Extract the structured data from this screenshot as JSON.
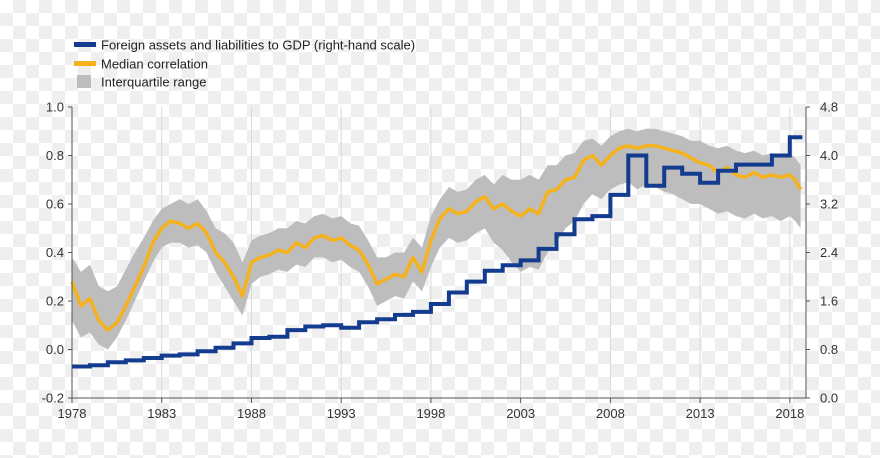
{
  "colors": {
    "assets_line": "#133b8f",
    "median_line": "#f5b21c",
    "iqr_band": "#bdbdbd",
    "grid": "#d9d9d9",
    "axis": "#555555"
  },
  "chart_data": {
    "type": "line",
    "title": "",
    "legend_position": "top-left",
    "grid": true,
    "x": {
      "min": 1978,
      "max": 2018.9,
      "ticks": [
        1978,
        1983,
        1988,
        1993,
        1998,
        2003,
        2008,
        2013,
        2018
      ]
    },
    "y_left": {
      "min": -0.2,
      "max": 1.0,
      "ticks": [
        "1.0",
        "0.8",
        "0.6",
        "0.4",
        "0.2",
        "0.0",
        "-0.2"
      ],
      "tick_values": [
        1.0,
        0.8,
        0.6,
        0.4,
        0.2,
        0.0,
        -0.2
      ]
    },
    "y_right": {
      "min": 0.0,
      "max": 4.8,
      "ticks": [
        "4.8",
        "4.0",
        "3.2",
        "2.4",
        "1.6",
        "0.8",
        "0.0"
      ],
      "tick_values": [
        4.8,
        4.0,
        3.2,
        2.4,
        1.6,
        0.8,
        0.0
      ]
    },
    "series": [
      {
        "name": "Foreign assets and liabilities to GDP (right-hand scale)",
        "axis": "right",
        "type": "step",
        "x": [
          1978,
          1979,
          1980,
          1981,
          1982,
          1983,
          1984,
          1985,
          1986,
          1987,
          1988,
          1989,
          1990,
          1991,
          1992,
          1993,
          1994,
          1995,
          1996,
          1997,
          1998,
          1999,
          2000,
          2001,
          2002,
          2003,
          2004,
          2005,
          2006,
          2007,
          2008,
          2009,
          2010,
          2011,
          2012,
          2013,
          2014,
          2015,
          2016,
          2017,
          2018,
          2018.7
        ],
        "y": [
          0.52,
          0.54,
          0.59,
          0.62,
          0.66,
          0.7,
          0.72,
          0.77,
          0.83,
          0.9,
          0.99,
          1.01,
          1.12,
          1.18,
          1.2,
          1.16,
          1.25,
          1.3,
          1.37,
          1.42,
          1.55,
          1.74,
          1.92,
          2.1,
          2.19,
          2.27,
          2.46,
          2.7,
          2.95,
          3.0,
          3.35,
          4.0,
          3.5,
          3.8,
          3.7,
          3.55,
          3.75,
          3.85,
          3.85,
          4.0,
          4.3,
          4.3
        ]
      },
      {
        "name": "Median correlation",
        "axis": "left",
        "x": [
          1978,
          1978.5,
          1979,
          1979.5,
          1980,
          1980.5,
          1981,
          1981.5,
          1982,
          1982.5,
          1983,
          1983.5,
          1984,
          1984.5,
          1985,
          1985.5,
          1986,
          1986.5,
          1987,
          1987.5,
          1988,
          1988.5,
          1989,
          1989.5,
          1990,
          1990.5,
          1991,
          1991.5,
          1992,
          1992.5,
          1993,
          1993.5,
          1994,
          1994.5,
          1995,
          1995.5,
          1996,
          1996.5,
          1997,
          1997.5,
          1998,
          1998.5,
          1999,
          1999.5,
          2000,
          2000.5,
          2001,
          2001.5,
          2002,
          2002.5,
          2003,
          2003.5,
          2004,
          2004.5,
          2005,
          2005.5,
          2006,
          2006.5,
          2007,
          2007.5,
          2008,
          2008.5,
          2009,
          2009.5,
          2010,
          2010.5,
          2011,
          2011.5,
          2012,
          2012.5,
          2013,
          2013.5,
          2014,
          2014.5,
          2015,
          2015.5,
          2016,
          2016.5,
          2017,
          2017.5,
          2018,
          2018.3,
          2018.6
        ],
        "y": [
          0.28,
          0.18,
          0.21,
          0.12,
          0.08,
          0.11,
          0.18,
          0.26,
          0.34,
          0.44,
          0.5,
          0.53,
          0.52,
          0.5,
          0.52,
          0.48,
          0.4,
          0.36,
          0.3,
          0.22,
          0.36,
          0.38,
          0.39,
          0.41,
          0.4,
          0.44,
          0.42,
          0.46,
          0.47,
          0.45,
          0.46,
          0.43,
          0.41,
          0.35,
          0.27,
          0.29,
          0.31,
          0.3,
          0.38,
          0.32,
          0.45,
          0.54,
          0.58,
          0.56,
          0.57,
          0.61,
          0.63,
          0.58,
          0.6,
          0.57,
          0.55,
          0.58,
          0.56,
          0.65,
          0.66,
          0.7,
          0.71,
          0.78,
          0.8,
          0.76,
          0.8,
          0.83,
          0.84,
          0.83,
          0.84,
          0.84,
          0.83,
          0.82,
          0.81,
          0.79,
          0.77,
          0.76,
          0.73,
          0.75,
          0.72,
          0.71,
          0.73,
          0.71,
          0.72,
          0.71,
          0.72,
          0.7,
          0.66
        ]
      },
      {
        "name": "Interquartile range",
        "axis": "left",
        "type": "band",
        "x": [
          1978,
          1978.5,
          1979,
          1979.5,
          1980,
          1980.5,
          1981,
          1981.5,
          1982,
          1982.5,
          1983,
          1983.5,
          1984,
          1984.5,
          1985,
          1985.5,
          1986,
          1986.5,
          1987,
          1987.5,
          1988,
          1988.5,
          1989,
          1989.5,
          1990,
          1990.5,
          1991,
          1991.5,
          1992,
          1992.5,
          1993,
          1993.5,
          1994,
          1994.5,
          1995,
          1995.5,
          1996,
          1996.5,
          1997,
          1997.5,
          1998,
          1998.5,
          1999,
          1999.5,
          2000,
          2000.5,
          2001,
          2001.5,
          2002,
          2002.5,
          2003,
          2003.5,
          2004,
          2004.5,
          2005,
          2005.5,
          2006,
          2006.5,
          2007,
          2007.5,
          2008,
          2008.5,
          2009,
          2009.5,
          2010,
          2010.5,
          2011,
          2011.5,
          2012,
          2012.5,
          2013,
          2013.5,
          2014,
          2014.5,
          2015,
          2015.5,
          2016,
          2016.5,
          2017,
          2017.5,
          2018,
          2018.3,
          2018.6
        ],
        "low": [
          0.12,
          0.05,
          0.07,
          0.02,
          0.0,
          0.05,
          0.12,
          0.2,
          0.28,
          0.36,
          0.42,
          0.44,
          0.44,
          0.42,
          0.43,
          0.4,
          0.32,
          0.26,
          0.2,
          0.14,
          0.27,
          0.3,
          0.31,
          0.33,
          0.32,
          0.35,
          0.34,
          0.38,
          0.38,
          0.36,
          0.37,
          0.34,
          0.32,
          0.26,
          0.18,
          0.2,
          0.22,
          0.21,
          0.28,
          0.24,
          0.34,
          0.42,
          0.46,
          0.44,
          0.45,
          0.48,
          0.5,
          0.44,
          0.41,
          0.36,
          0.32,
          0.34,
          0.33,
          0.4,
          0.44,
          0.5,
          0.53,
          0.6,
          0.64,
          0.62,
          0.66,
          0.68,
          0.69,
          0.66,
          0.68,
          0.67,
          0.65,
          0.64,
          0.62,
          0.6,
          0.6,
          0.58,
          0.56,
          0.57,
          0.55,
          0.54,
          0.56,
          0.54,
          0.55,
          0.53,
          0.55,
          0.53,
          0.5
        ],
        "high": [
          0.38,
          0.32,
          0.35,
          0.26,
          0.24,
          0.26,
          0.33,
          0.4,
          0.46,
          0.53,
          0.58,
          0.6,
          0.62,
          0.6,
          0.62,
          0.57,
          0.5,
          0.48,
          0.44,
          0.36,
          0.45,
          0.47,
          0.48,
          0.5,
          0.5,
          0.53,
          0.52,
          0.55,
          0.56,
          0.54,
          0.55,
          0.52,
          0.51,
          0.45,
          0.38,
          0.38,
          0.4,
          0.4,
          0.46,
          0.42,
          0.55,
          0.62,
          0.67,
          0.65,
          0.66,
          0.7,
          0.72,
          0.68,
          0.72,
          0.7,
          0.7,
          0.72,
          0.7,
          0.76,
          0.76,
          0.8,
          0.81,
          0.86,
          0.87,
          0.84,
          0.88,
          0.9,
          0.91,
          0.9,
          0.91,
          0.91,
          0.9,
          0.89,
          0.88,
          0.86,
          0.86,
          0.84,
          0.83,
          0.84,
          0.82,
          0.81,
          0.82,
          0.8,
          0.81,
          0.8,
          0.81,
          0.79,
          0.76
        ]
      }
    ]
  }
}
